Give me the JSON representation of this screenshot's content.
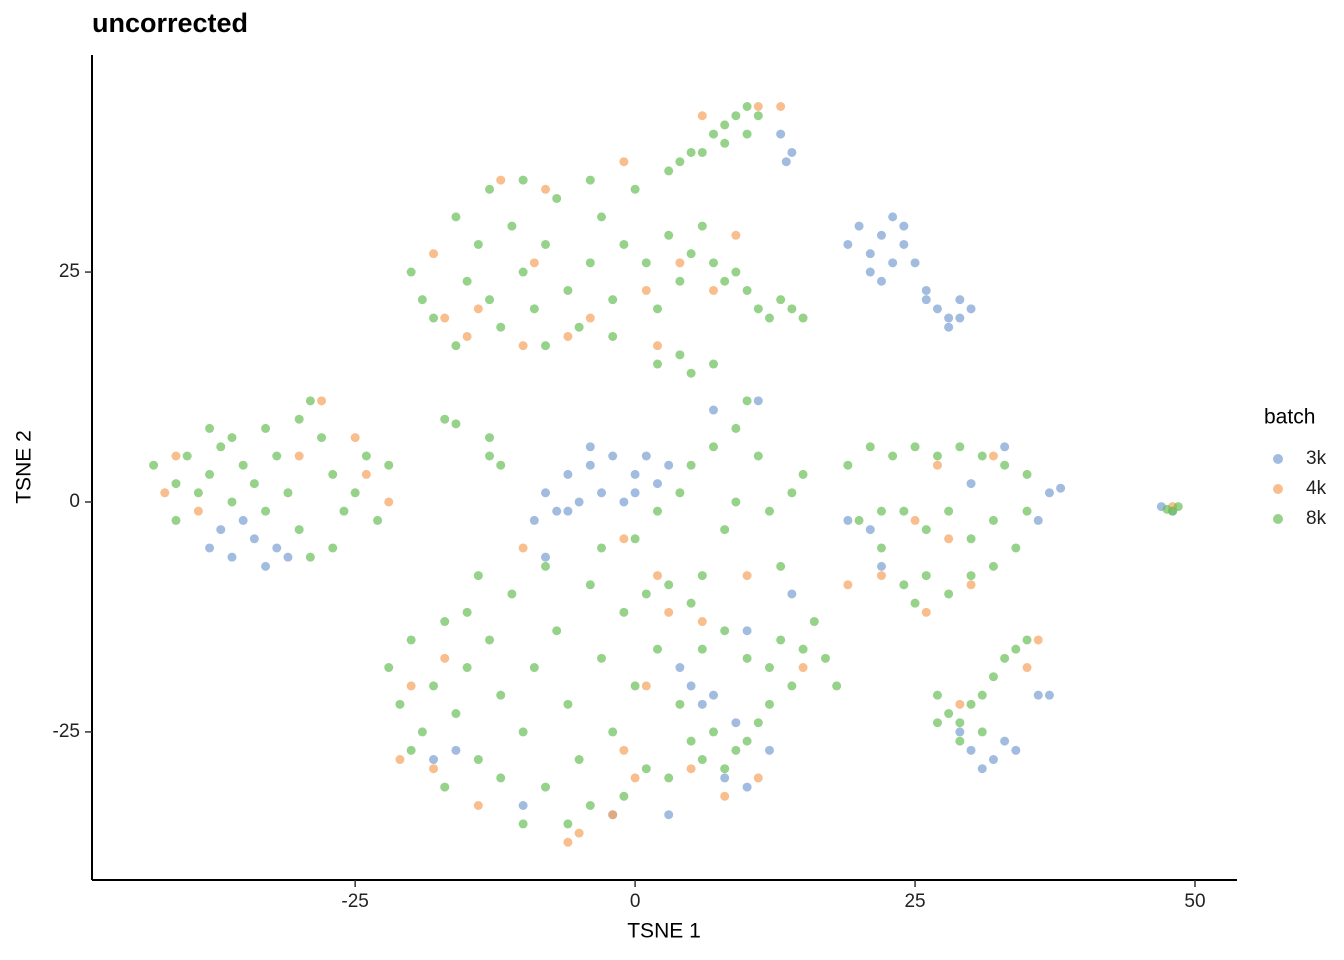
{
  "chart_data": {
    "type": "scatter",
    "title": "uncorrected",
    "x_label": "TSNE 1",
    "y_label": "TSNE 2",
    "legend_title": "batch",
    "legend_position": "right",
    "xlim": [
      -48.5,
      53.75
    ],
    "ylim": [
      -41.1,
      48.6
    ],
    "xticks": [
      -25,
      0,
      25,
      50
    ],
    "yticks": [
      -25,
      0,
      25
    ],
    "series": [
      {
        "name": "3k",
        "color": "#7b9fd1",
        "x": [
          20,
          21,
          22,
          23,
          24,
          21,
          23,
          22,
          25,
          26,
          19,
          24,
          27,
          28,
          29,
          30,
          28,
          26,
          29,
          13,
          14,
          13.5,
          -8,
          -6,
          -4,
          -2,
          0,
          -3,
          -7,
          -5,
          1,
          2,
          -1,
          -9,
          -4,
          3,
          -6,
          0,
          -36,
          -34,
          -33,
          -31,
          -37,
          -35,
          -32,
          -38,
          30,
          32,
          33,
          31,
          34,
          29,
          36,
          37,
          37,
          38,
          36,
          21,
          19,
          22,
          33,
          30,
          5,
          6,
          7,
          9,
          4,
          8,
          10,
          -18,
          -16,
          -10,
          -2,
          3,
          12,
          7,
          11,
          -8,
          10,
          14,
          48,
          47
        ],
        "y": [
          30,
          27,
          29,
          31,
          28,
          25,
          26,
          24,
          26,
          23,
          28,
          30,
          21,
          20,
          22,
          21,
          19,
          22,
          20,
          40,
          38,
          37,
          1,
          3,
          4,
          5,
          3,
          1,
          -1,
          0,
          5,
          2,
          0,
          -2,
          6,
          4,
          -1,
          1,
          -6,
          -4,
          -7,
          -6,
          -3,
          -2,
          -5,
          -5,
          -27,
          -28,
          -26,
          -29,
          -27,
          -25,
          -21,
          -21,
          1,
          1.5,
          -2,
          -3,
          -2,
          -7,
          6,
          2,
          -20,
          -22,
          -21,
          -24,
          -18,
          -30,
          -31,
          -28,
          -27,
          -33,
          -34,
          -34,
          -27,
          10,
          11,
          -6,
          -14,
          -10,
          -1,
          -0.5
        ]
      },
      {
        "name": "4k",
        "color": "#f7a35c",
        "x": [
          -17,
          -15,
          -10,
          -6,
          -4,
          -18,
          -12,
          -8,
          -1,
          1,
          4,
          7,
          9,
          2,
          11,
          13,
          -41,
          -42,
          -39,
          -28,
          -30,
          -22,
          -24,
          -25,
          -17,
          -21,
          -18,
          -14,
          -6,
          -5,
          -2,
          0,
          5,
          8,
          11,
          3,
          6,
          1,
          -1,
          19,
          22,
          25,
          27,
          32,
          28,
          30,
          26,
          36,
          35,
          29,
          -1,
          2,
          10,
          -10,
          -20,
          -9,
          -14,
          6,
          48,
          15
        ],
        "y": [
          20,
          18,
          17,
          18,
          20,
          27,
          35,
          34,
          37,
          23,
          26,
          23,
          29,
          17,
          43,
          43,
          5,
          1,
          -1,
          11,
          5,
          0,
          3,
          7,
          -17,
          -28,
          -29,
          -33,
          -37,
          -36,
          -34,
          -30,
          -29,
          -32,
          -30,
          -12,
          -13,
          -20,
          -27,
          -9,
          -8,
          -2,
          4,
          5,
          -4,
          -9,
          -12,
          -15,
          -18,
          -22,
          -4,
          -8,
          -8,
          -5,
          -20,
          26,
          21,
          42,
          -0.5,
          -18
        ]
      },
      {
        "name": "8k",
        "color": "#6abf59",
        "x": [
          -20,
          -19,
          -18,
          -16,
          -15,
          -14,
          -13,
          -12,
          -11,
          -10,
          -9,
          -8,
          -7,
          -6,
          -5,
          -4,
          -3,
          -2,
          -1,
          0,
          1,
          2,
          3,
          4,
          5,
          6,
          7,
          8,
          9,
          -13,
          -10,
          -16,
          -4,
          -2,
          -8,
          10,
          11,
          13,
          14,
          12,
          15,
          4,
          5,
          2,
          7,
          4,
          5,
          3,
          6,
          7,
          8,
          9,
          10,
          11,
          8,
          10,
          -43,
          -41,
          -40,
          -39,
          -38,
          -37,
          -36,
          -35,
          -34,
          -33,
          -32,
          -31,
          -30,
          -29,
          -28,
          -27,
          -26,
          -25,
          -24,
          -23,
          -27,
          -30,
          -33,
          -36,
          -41,
          -38,
          -22,
          -29,
          -17,
          -16,
          -13,
          -12,
          -13,
          -3,
          0,
          2,
          4,
          5,
          7,
          9,
          10,
          11,
          8,
          6,
          3,
          12,
          14,
          9,
          1,
          5,
          13,
          15,
          19,
          21,
          23,
          25,
          27,
          29,
          31,
          33,
          35,
          20,
          22,
          24,
          26,
          28,
          30,
          32,
          34,
          24,
          26,
          28,
          30,
          32,
          25,
          22,
          35,
          27,
          28,
          29,
          30,
          31,
          32,
          33,
          34,
          35,
          29,
          31,
          27,
          48,
          47.5,
          48.5,
          -22,
          -21,
          -20,
          -19,
          -18,
          -17,
          -16,
          -15,
          -14,
          -13,
          -12,
          -11,
          -10,
          -9,
          -8,
          -7,
          -6,
          -5,
          -4,
          -3,
          -2,
          -1,
          0,
          1,
          2,
          -10,
          -6,
          -14,
          -20,
          -17,
          -12,
          -8,
          -4,
          -1,
          -15,
          5,
          6,
          7,
          8,
          9,
          10,
          11,
          12,
          13,
          14,
          10,
          15,
          16,
          17,
          18,
          12,
          8,
          6,
          3,
          4
        ],
        "y": [
          25,
          22,
          20,
          17,
          24,
          28,
          22,
          19,
          30,
          25,
          21,
          28,
          33,
          23,
          19,
          26,
          31,
          22,
          28,
          34,
          26,
          21,
          29,
          24,
          27,
          30,
          26,
          24,
          25,
          34,
          35,
          31,
          35,
          18,
          17,
          23,
          21,
          22,
          21,
          20,
          20,
          16,
          14,
          15,
          15,
          37,
          38,
          36,
          38,
          40,
          41,
          42,
          43,
          42,
          39,
          40,
          4,
          2,
          5,
          1,
          3,
          6,
          0,
          4,
          2,
          8,
          5,
          1,
          9,
          11,
          7,
          3,
          -1,
          1,
          5,
          -2,
          -5,
          -3,
          -1,
          7,
          -2,
          8,
          4,
          -6,
          9,
          8.5,
          5,
          4,
          7,
          -5,
          -4,
          -1,
          1,
          4,
          6,
          8,
          11,
          5,
          -3,
          -8,
          -9,
          -1,
          1,
          0,
          -10,
          -11,
          -7,
          3,
          4,
          6,
          5,
          6,
          5,
          6,
          5,
          4,
          3,
          -2,
          -5,
          -1,
          -3,
          -1,
          -4,
          -2,
          -5,
          -9,
          -8,
          -10,
          -8,
          -7,
          -11,
          -1,
          -1,
          -21,
          -23,
          -24,
          -22,
          -21,
          -19,
          -17,
          -16,
          -15,
          -26,
          -25,
          -24,
          -1,
          -0.8,
          -0.5,
          -18,
          -22,
          -15,
          -25,
          -20,
          -13,
          -23,
          -18,
          -28,
          -15,
          -21,
          -10,
          -25,
          -18,
          -31,
          -14,
          -22,
          -28,
          -33,
          -17,
          -25,
          -12,
          -20,
          -29,
          -16,
          -35,
          -35,
          -8,
          -27,
          -31,
          -30,
          -7,
          -9,
          -32,
          -12,
          -26,
          -28,
          -25,
          -29,
          -27,
          -26,
          -24,
          -18,
          -15,
          -20,
          -17,
          -16,
          -13,
          -17,
          -20,
          -22,
          -14,
          -16,
          -30,
          -22
        ]
      }
    ]
  }
}
